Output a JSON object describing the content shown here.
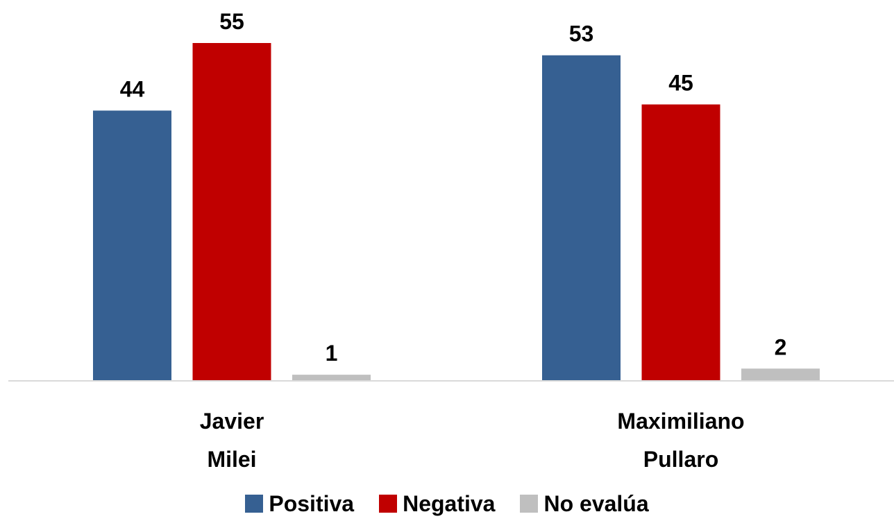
{
  "chart_data": {
    "type": "bar",
    "categories": [
      "Javier\nMilei",
      "Maximiliano\nPullaro"
    ],
    "series": [
      {
        "name": "Positiva",
        "values": [
          44,
          53
        ],
        "color": "#366092"
      },
      {
        "name": "Negativa",
        "values": [
          55,
          45
        ],
        "color": "#c00000"
      },
      {
        "name": "No evalúa",
        "values": [
          1,
          2
        ],
        "color": "#bfbfbf"
      }
    ],
    "ylim": [
      0,
      55
    ],
    "grid": false,
    "legend_position": "bottom",
    "axis_color": "#d9d9d9"
  }
}
